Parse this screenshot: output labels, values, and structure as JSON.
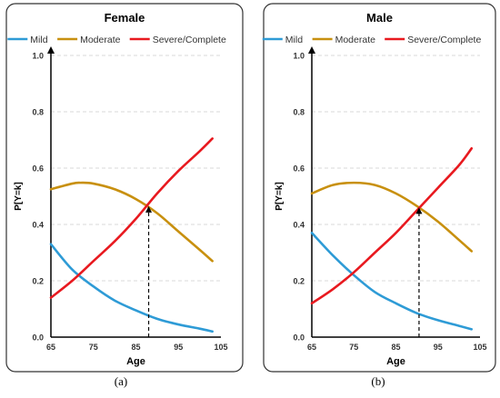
{
  "colors": {
    "mild": "#2E9BD6",
    "moderate": "#C8900F",
    "severe": "#E8191F",
    "grid": "#D9D9D9",
    "axis": "#000000",
    "panel_border": "#333333",
    "panel_bg": "#ffffff"
  },
  "chart_data": [
    {
      "type": "line",
      "title": "Female",
      "xlabel": "Age",
      "ylabel": "P[Y=k]",
      "caption": "(a)",
      "xlim": [
        65,
        105
      ],
      "ylim": [
        0,
        1
      ],
      "xticks": [
        "65",
        "75",
        "85",
        "95",
        "105"
      ],
      "yticks": [
        "0.0",
        "0.2",
        "0.4",
        "0.6",
        "0.8",
        "1.0"
      ],
      "grid": "horizontal dashed",
      "legend": "top",
      "marker_line": {
        "x": 88,
        "y": 0.465
      },
      "series": [
        {
          "name": "Mild",
          "color_key": "mild",
          "x": [
            65,
            70,
            75,
            80,
            85,
            90,
            95,
            100,
            103
          ],
          "y": [
            0.33,
            0.24,
            0.18,
            0.13,
            0.095,
            0.065,
            0.045,
            0.03,
            0.02
          ]
        },
        {
          "name": "Moderate",
          "color_key": "moderate",
          "x": [
            65,
            70,
            72,
            75,
            80,
            85,
            90,
            95,
            100,
            103
          ],
          "y": [
            0.525,
            0.545,
            0.548,
            0.545,
            0.525,
            0.49,
            0.44,
            0.375,
            0.31,
            0.27
          ]
        },
        {
          "name": "Severe/Complete",
          "color_key": "severe",
          "x": [
            65,
            70,
            75,
            80,
            85,
            90,
            95,
            100,
            103
          ],
          "y": [
            0.14,
            0.2,
            0.27,
            0.34,
            0.42,
            0.51,
            0.59,
            0.66,
            0.705
          ]
        }
      ]
    },
    {
      "type": "line",
      "title": "Male",
      "xlabel": "Age",
      "ylabel": "P[Y=k]",
      "caption": "(b)",
      "xlim": [
        65,
        105
      ],
      "ylim": [
        0,
        1
      ],
      "xticks": [
        "65",
        "75",
        "85",
        "95",
        "105"
      ],
      "yticks": [
        "0.0",
        "0.2",
        "0.4",
        "0.6",
        "0.8",
        "1.0"
      ],
      "grid": "horizontal dashed",
      "legend": "top",
      "marker_line": {
        "x": 90.5,
        "y": 0.46
      },
      "series": [
        {
          "name": "Mild",
          "color_key": "mild",
          "x": [
            65,
            70,
            75,
            80,
            85,
            90,
            95,
            100,
            103
          ],
          "y": [
            0.37,
            0.29,
            0.22,
            0.16,
            0.12,
            0.085,
            0.06,
            0.04,
            0.028
          ]
        },
        {
          "name": "Moderate",
          "color_key": "moderate",
          "x": [
            65,
            70,
            75,
            80,
            85,
            90,
            95,
            100,
            103
          ],
          "y": [
            0.51,
            0.54,
            0.548,
            0.54,
            0.51,
            0.465,
            0.41,
            0.345,
            0.305
          ]
        },
        {
          "name": "Severe/Complete",
          "color_key": "severe",
          "x": [
            65,
            70,
            75,
            80,
            85,
            90,
            95,
            100,
            103
          ],
          "y": [
            0.12,
            0.17,
            0.23,
            0.3,
            0.37,
            0.45,
            0.53,
            0.61,
            0.67
          ]
        }
      ]
    }
  ]
}
